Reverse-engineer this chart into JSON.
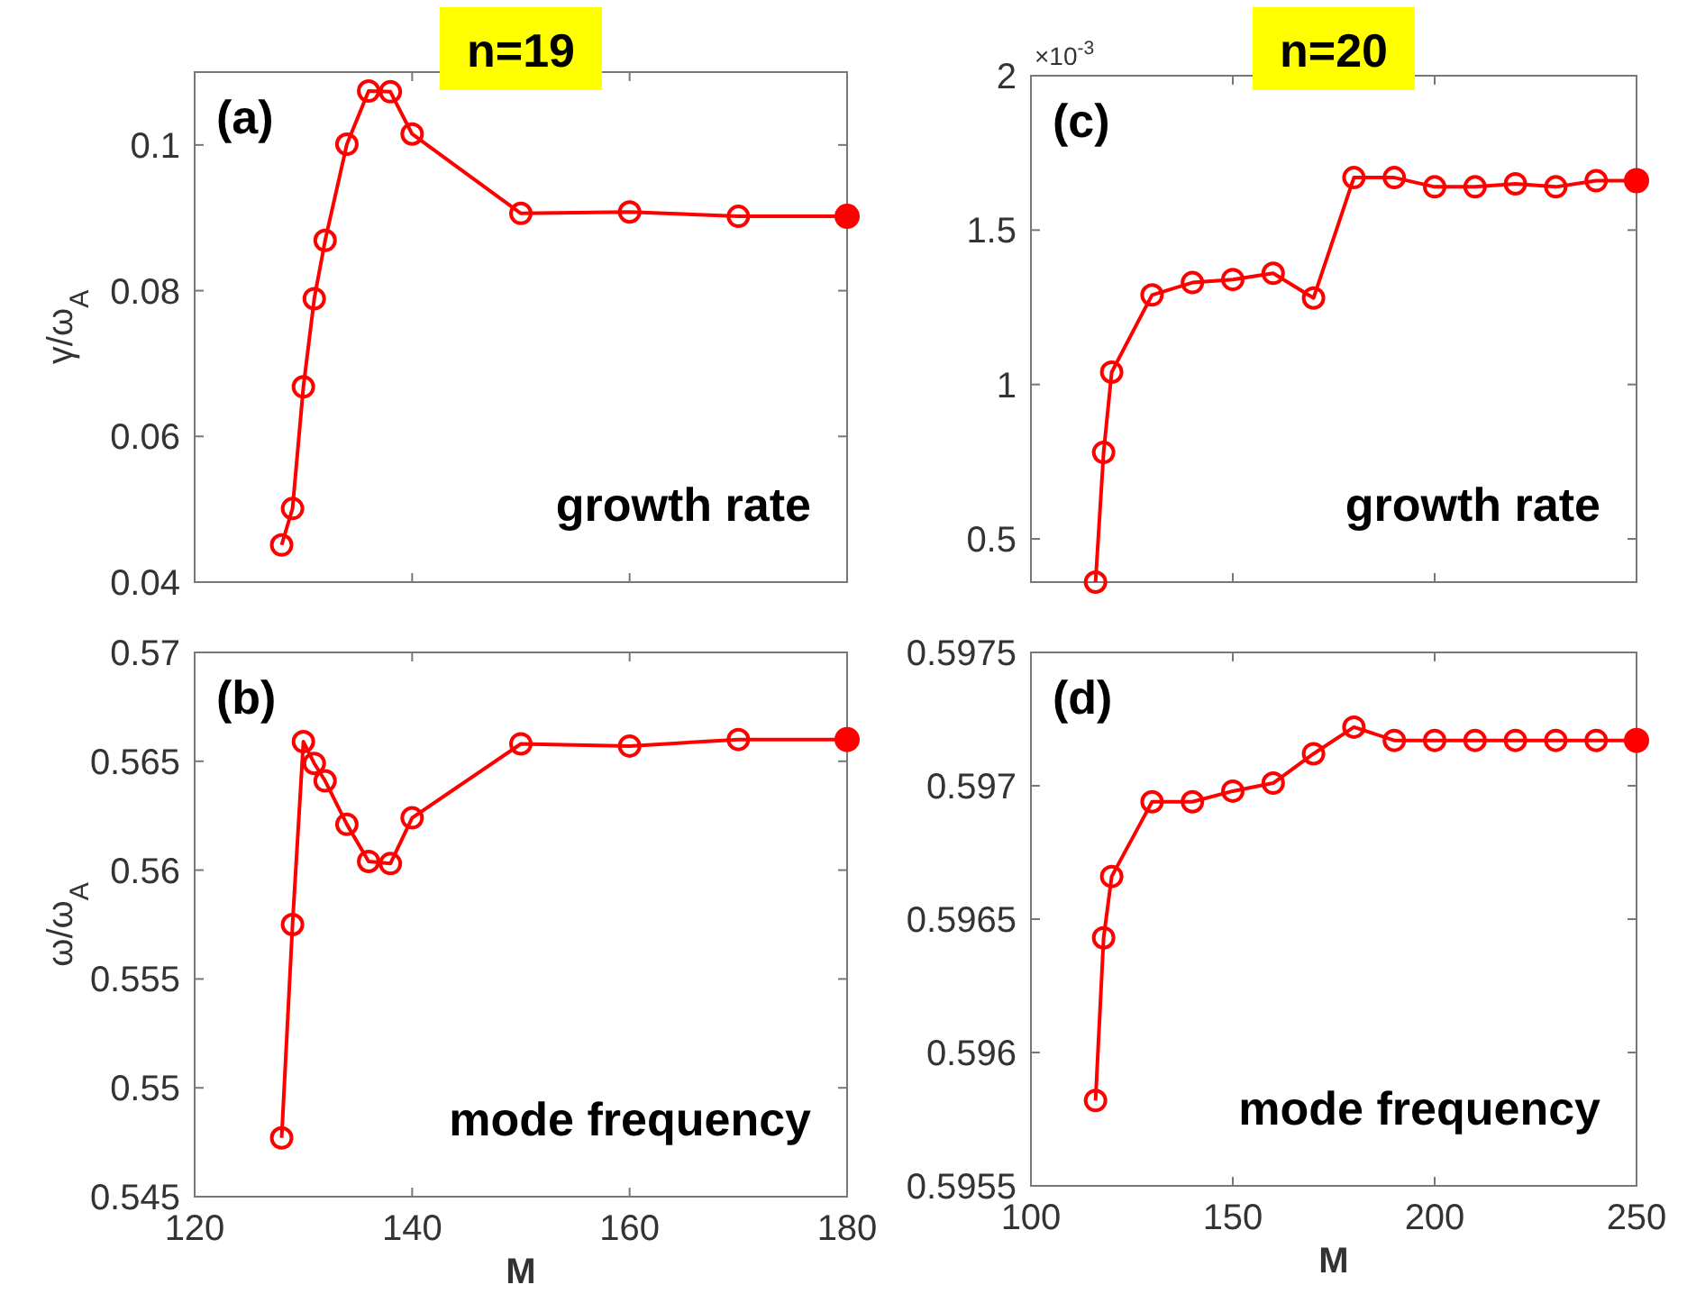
{
  "chart_data": [
    {
      "type": "line",
      "title": "n=19",
      "ylabel": "γ/ω$_{A}$",
      "annotations": [
        "(a)",
        "growth rate"
      ],
      "xlim": [
        120,
        180
      ],
      "xticks": [
        120,
        140,
        160,
        180
      ],
      "ylim": [
        0.04,
        0.11
      ],
      "yticks": [
        0.04,
        0.06,
        0.08,
        0.1
      ],
      "tick_labels": "y",
      "grid": false,
      "marker": "circle",
      "line_style": "solid",
      "series": [
        {
          "color": "#ff0000",
          "x": [
            128,
            129,
            130,
            131,
            132,
            134,
            136,
            138,
            140,
            150,
            160,
            170,
            180
          ],
          "values": [
            0.0451,
            0.0501,
            0.0668,
            0.0789,
            0.0869,
            0.1001,
            0.1074,
            0.1073,
            0.1015,
            0.0906,
            0.0908,
            0.0902,
            0.0902
          ]
        },
        {
          "type": "scatter",
          "color": "#ff0000",
          "x": [
            180
          ],
          "values": [
            0.0902
          ]
        }
      ]
    },
    {
      "type": "line",
      "xlabel": "M",
      "ylabel": "ω/ω$_{A}$",
      "annotations": [
        "(b)",
        "mode frequency"
      ],
      "xlim": [
        120,
        180
      ],
      "xticks": [
        120,
        140,
        160,
        180
      ],
      "ylim": [
        0.545,
        0.57
      ],
      "yticks": [
        0.545,
        0.55,
        0.555,
        0.56,
        0.565,
        0.57
      ],
      "grid": false,
      "marker": "circle",
      "line_style": "solid",
      "series": [
        {
          "color": "#ff0000",
          "x": [
            128,
            129,
            130,
            131,
            132,
            134,
            136,
            138,
            140,
            150,
            160,
            170,
            180
          ],
          "values": [
            0.5477,
            0.5575,
            0.5659,
            0.5649,
            0.5641,
            0.5621,
            0.5604,
            0.5603,
            0.5624,
            0.5658,
            0.5657,
            0.566,
            0.566
          ]
        },
        {
          "type": "scatter",
          "color": "#ff0000",
          "x": [
            180
          ],
          "values": [
            0.566
          ]
        }
      ]
    },
    {
      "type": "line",
      "title": "n=20",
      "annotations": [
        "(c)",
        "growth rate",
        "×10$^{-3}$"
      ],
      "xlim": [
        100,
        250
      ],
      "xticks": [
        100,
        150,
        200,
        250
      ],
      "ylim": [
        0.36,
        2
      ],
      "yticks": [
        0.5,
        1,
        1.5,
        2
      ],
      "tick_labels": "y",
      "grid": false,
      "marker": "circle",
      "line_style": "solid",
      "series": [
        {
          "color": "#ff0000",
          "x": [
            116,
            118,
            120,
            130,
            140,
            150,
            160,
            170,
            180,
            190,
            200,
            210,
            220,
            230,
            240,
            250
          ],
          "values": [
            0.36,
            0.78,
            1.04,
            1.29,
            1.33,
            1.34,
            1.36,
            1.28,
            1.67,
            1.67,
            1.64,
            1.64,
            1.65,
            1.64,
            1.66,
            1.66
          ]
        },
        {
          "type": "scatter",
          "color": "#ff0000",
          "x": [
            250
          ],
          "values": [
            1.66
          ]
        }
      ]
    },
    {
      "type": "line",
      "xlabel": "M",
      "annotations": [
        "(d)",
        "mode frequency"
      ],
      "xlim": [
        100,
        250
      ],
      "xticks": [
        100,
        150,
        200,
        250
      ],
      "ylim": [
        0.5955,
        0.5975
      ],
      "yticks": [
        0.5955,
        0.596,
        0.5965,
        0.597,
        0.5975
      ],
      "grid": false,
      "marker": "circle",
      "line_style": "solid",
      "series": [
        {
          "color": "#ff0000",
          "x": [
            116,
            118,
            120,
            130,
            140,
            150,
            160,
            170,
            180,
            190,
            200,
            210,
            220,
            230,
            240,
            250
          ],
          "values": [
            0.59582,
            0.59643,
            0.59666,
            0.59694,
            0.59694,
            0.59698,
            0.59701,
            0.59712,
            0.59722,
            0.59717,
            0.59717,
            0.59717,
            0.59717,
            0.59717,
            0.59717,
            0.59717
          ]
        },
        {
          "type": "scatter",
          "color": "#ff0000",
          "x": [
            250
          ],
          "values": [
            0.59717
          ]
        }
      ]
    }
  ]
}
